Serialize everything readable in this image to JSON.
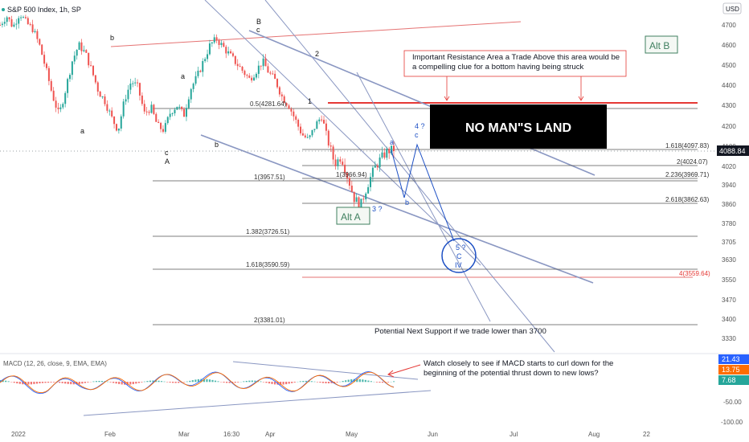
{
  "header": {
    "symbol_partial": "S&P 500 Index, 1h, SP",
    "currency": "USD"
  },
  "colors": {
    "candle_up": "#26a69a",
    "candle_down": "#ef5350",
    "trend": "#8a97c2",
    "red_line": "#e53935",
    "fib": "#555555",
    "wave_blue": "#1c4fc4",
    "alt_box": "#3f7f5f",
    "price_tag": "#131722",
    "macd_line": "#2962ff",
    "signal_line": "#ff6d00"
  },
  "chart_data": {
    "type": "candlestick",
    "title": "S&P 500 Index, 1h, SP",
    "ylim": [
      3300,
      4800
    ],
    "y_ticks": [
      4700,
      4600,
      4500,
      4400,
      4300,
      4200,
      4100,
      4020,
      3940,
      3860,
      3780,
      3705,
      3630,
      3550,
      3470,
      3400,
      3330
    ],
    "x_ticks": [
      "2022",
      "Feb",
      "Mar",
      "16:30",
      "Apr",
      "May",
      "Jun",
      "Jul",
      "Aug",
      "22"
    ],
    "last_price": "4088.84",
    "price_path": [
      4700,
      4745,
      4690,
      4760,
      4710,
      4680,
      4600,
      4480,
      4350,
      4250,
      4380,
      4520,
      4600,
      4560,
      4470,
      4370,
      4320,
      4240,
      4180,
      4330,
      4420,
      4390,
      4260,
      4290,
      4200,
      4180,
      4270,
      4300,
      4250,
      4380,
      4440,
      4520,
      4600,
      4630,
      4590,
      4550,
      4510,
      4470,
      4430,
      4470,
      4520,
      4460,
      4420,
      4340,
      4300,
      4230,
      4160,
      4130,
      4200,
      4250,
      4120,
      4030,
      4060,
      3970,
      3880,
      3860,
      3940,
      4010,
      4050,
      4080,
      4088
    ],
    "fib_levels": [
      {
        "label": "0.5(4281.64)"
      },
      {
        "label": "1.618(4097.83)"
      },
      {
        "label": "2(4024.07)"
      },
      {
        "label": "1(3957.51)"
      },
      {
        "label": "1(3966.94)"
      },
      {
        "label": "2.236(3969.71)"
      },
      {
        "label": "2.618(3862.63)"
      },
      {
        "label": "1.382(3726.51)"
      },
      {
        "label": "1.618(3590.59)"
      },
      {
        "label": "4(3559.64)"
      },
      {
        "label": "2(3381.01)"
      }
    ],
    "wave_labels": [
      "b",
      "a",
      "c",
      "A",
      "a",
      "b",
      "B",
      "c",
      "2",
      "1",
      "a",
      "4 ?",
      "c",
      "b",
      "3 ?",
      "5 ?",
      "C",
      "IV"
    ],
    "macd": {
      "legend": "MACD (12, 26, close, 9, EMA, EMA)",
      "values": [
        "21.43",
        "13.75",
        "7.68"
      ],
      "y_ticks": [
        "-50.00",
        "-100.00"
      ]
    }
  },
  "annotations": {
    "alt_b": "Alt B",
    "alt_a": "Alt A",
    "resistance_note": "Important Resistance Area a Trade Above this area would be a compelling clue for a bottom having being struck",
    "no_mans_land": "NO MAN\"S LAND",
    "support_note": "Potential Next Support if we trade lower than 3700",
    "macd_note": "Watch closely to see if MACD starts to curl down for the beginning of the potential thrust down to new lows?"
  }
}
